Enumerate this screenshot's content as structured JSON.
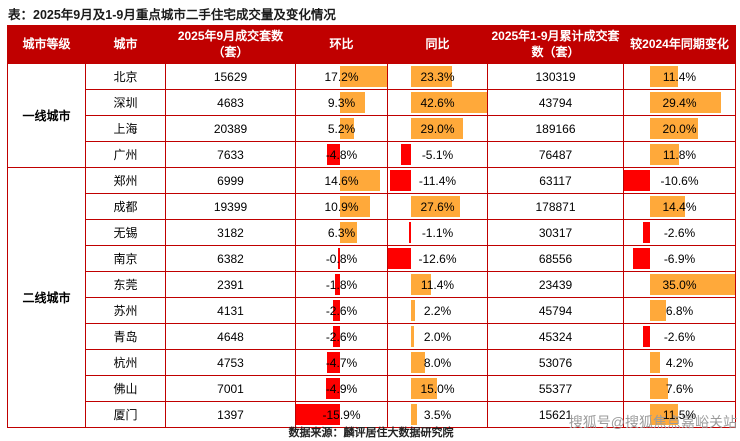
{
  "title": "表：2025年9月及1-9月重点城市二手住宅成交量及变化情况",
  "footer": {
    "source": "数据来源：麟评居住大数据研究院"
  },
  "watermark": "搜狐号@搜狐焦点嘉峪关站",
  "colors": {
    "header_bg": "#c00000",
    "header_text": "#ffffff",
    "border": "#c00000",
    "positive_bar": "#ffa93a",
    "negative_bar": "#fe0000"
  },
  "chart_data": {
    "type": "table",
    "title": "2025年9月及1-9月重点城市二手住宅成交量及变化情况",
    "columns": [
      "城市等级",
      "城市",
      "2025年9月成交套数（套）",
      "环比",
      "同比",
      "2025年1-9月累计成交套数（套）",
      "较2024年同期变化"
    ],
    "bar_columns": [
      "环比",
      "同比",
      "较2024年同期变化"
    ],
    "bar_legend": "orange bar = positive value, red bar = negative value, axis proportional to column min/max",
    "groups": [
      {
        "tier": "一线城市",
        "rows": [
          {
            "city": "北京",
            "sep_units": "15629",
            "mom": "17.2%",
            "yoy": "23.3%",
            "cum_units": "130319",
            "vs_2024": "11.4%"
          },
          {
            "city": "深圳",
            "sep_units": "4683",
            "mom": "9.3%",
            "yoy": "42.6%",
            "cum_units": "43794",
            "vs_2024": "29.4%"
          },
          {
            "city": "上海",
            "sep_units": "20389",
            "mom": "5.2%",
            "yoy": "29.0%",
            "cum_units": "189166",
            "vs_2024": "20.0%"
          },
          {
            "city": "广州",
            "sep_units": "7633",
            "mom": "-4.8%",
            "yoy": "-5.1%",
            "cum_units": "76487",
            "vs_2024": "11.8%"
          }
        ]
      },
      {
        "tier": "二线城市",
        "rows": [
          {
            "city": "郑州",
            "sep_units": "6999",
            "mom": "14.6%",
            "yoy": "-11.4%",
            "cum_units": "63117",
            "vs_2024": "-10.6%"
          },
          {
            "city": "成都",
            "sep_units": "19399",
            "mom": "10.9%",
            "yoy": "27.6%",
            "cum_units": "178871",
            "vs_2024": "14.4%"
          },
          {
            "city": "无锡",
            "sep_units": "3182",
            "mom": "6.3%",
            "yoy": "-1.1%",
            "cum_units": "30317",
            "vs_2024": "-2.6%"
          },
          {
            "city": "南京",
            "sep_units": "6382",
            "mom": "-0.8%",
            "yoy": "-12.6%",
            "cum_units": "68556",
            "vs_2024": "-6.9%"
          },
          {
            "city": "东莞",
            "sep_units": "2391",
            "mom": "-1.8%",
            "yoy": "11.4%",
            "cum_units": "23439",
            "vs_2024": "35.0%"
          },
          {
            "city": "苏州",
            "sep_units": "4131",
            "mom": "-2.6%",
            "yoy": "2.2%",
            "cum_units": "45794",
            "vs_2024": "6.8%"
          },
          {
            "city": "青岛",
            "sep_units": "4648",
            "mom": "-2.6%",
            "yoy": "2.0%",
            "cum_units": "45324",
            "vs_2024": "-2.6%"
          },
          {
            "city": "杭州",
            "sep_units": "4753",
            "mom": "-4.7%",
            "yoy": "8.0%",
            "cum_units": "53076",
            "vs_2024": "4.2%"
          },
          {
            "city": "佛山",
            "sep_units": "7001",
            "mom": "-4.9%",
            "yoy": "15.0%",
            "cum_units": "55377",
            "vs_2024": "7.6%"
          },
          {
            "city": "厦门",
            "sep_units": "1397",
            "mom": "-15.9%",
            "yoy": "3.5%",
            "cum_units": "15621",
            "vs_2024": "11.5%"
          }
        ]
      }
    ]
  }
}
